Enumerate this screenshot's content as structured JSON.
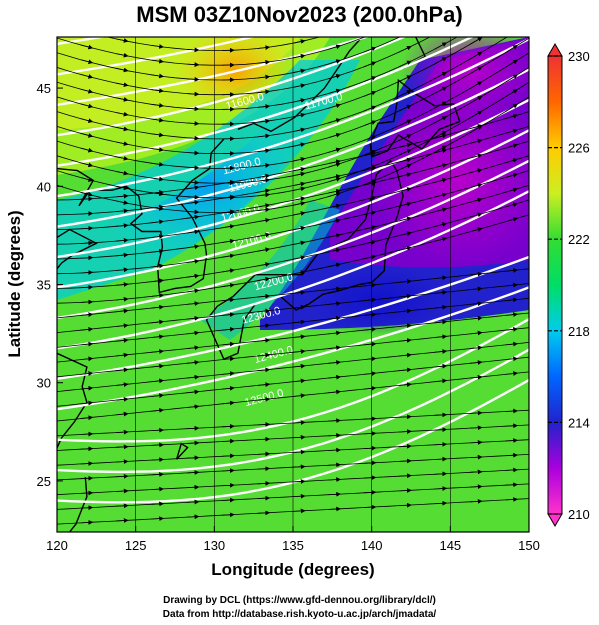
{
  "title": "MSM 03Z10Nov2023 (200.0hPa)",
  "x_axis": {
    "label": "Longitude (degrees)",
    "range": [
      120,
      150
    ],
    "ticks": [
      120,
      125,
      130,
      135,
      140,
      145,
      150
    ]
  },
  "y_axis": {
    "label": "Latitude  (degrees)",
    "range": [
      22.4,
      47.6
    ],
    "ticks": [
      25,
      30,
      35,
      40,
      45
    ]
  },
  "colorbar": {
    "range": [
      210,
      230
    ],
    "ticks": [
      210,
      214,
      218,
      222,
      226,
      230
    ],
    "colors": [
      "#ff33cc",
      "#aa00dd",
      "#2222cc",
      "#0066ff",
      "#00ccee",
      "#00dd66",
      "#33dd33",
      "#ccee22",
      "#ffcc00",
      "#ff6600",
      "#ee3333"
    ]
  },
  "contours": {
    "color": "#ffffff",
    "labels": [
      "11600.0",
      "11700.0",
      "11800.0",
      "11900.0",
      "12000.0",
      "12100.0",
      "12200.0",
      "12300.0",
      "12400.0",
      "12500.0"
    ]
  },
  "credits": {
    "line1": "Drawing by DCL (https://www.gfd-dennou.org/library/dcl/)",
    "line2": "Data from http://database.rish.kyoto-u.ac.jp/arch/jmadata/"
  }
}
